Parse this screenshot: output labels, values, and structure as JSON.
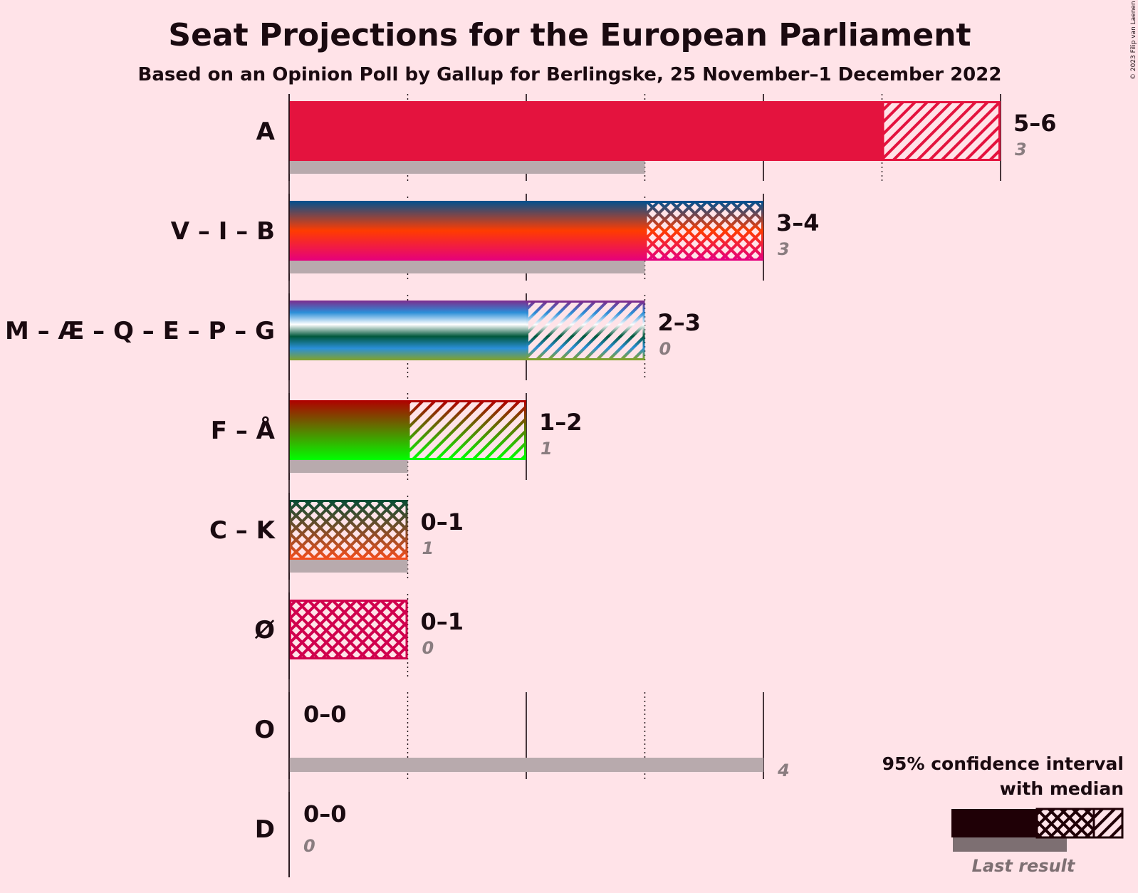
{
  "title": "Seat Projections for the European Parliament",
  "subtitle": "Based on an Opinion Poll by Gallup for Berlingske, 25 November–1 December 2022",
  "copyright": "© 2023 Filip van Laenen",
  "legend": {
    "title_line1": "95% confidence interval",
    "title_line2": "with median",
    "last_result_label": "Last result"
  },
  "chart_data": {
    "type": "bar",
    "orientation": "horizontal",
    "xlim": [
      0,
      6
    ],
    "grid": true,
    "legend_position": "bottom-right",
    "categories": [
      "A",
      "V – I – B",
      "M – Æ – Q – E – P – G",
      "F – Å",
      "C – K",
      "Ø",
      "O",
      "D"
    ],
    "parties": [
      {
        "label": "A",
        "range_text": "5–6",
        "last_text": "3",
        "low": 5,
        "high": 6,
        "last": 3,
        "colors": [
          "#E4133E"
        ]
      },
      {
        "label": "V – I – B",
        "range_text": "3–4",
        "last_text": "3",
        "low": 3,
        "high": 4,
        "last": 3,
        "colors": [
          "#01508F",
          "#FF3C00",
          "#E5007D"
        ]
      },
      {
        "label": "M – Æ – Q – E – P – G",
        "range_text": "2–3",
        "last_text": "0",
        "low": 2,
        "high": 3,
        "last": 0,
        "colors": [
          "#7D2B8D",
          "#2B8FD8",
          "#FFFFFF",
          "#00583C",
          "#2B8FD8",
          "#82A22A"
        ]
      },
      {
        "label": "F – Å",
        "range_text": "1–2",
        "last_text": "1",
        "low": 1,
        "high": 2,
        "last": 1,
        "colors": [
          "#B00000",
          "#00FF00"
        ]
      },
      {
        "label": "C – K",
        "range_text": "0–1",
        "last_text": "1",
        "low": 0,
        "high": 1,
        "last": 1,
        "colors": [
          "#0A4C33",
          "#F24E1E"
        ]
      },
      {
        "label": "Ø",
        "range_text": "0–1",
        "last_text": "0",
        "low": 0,
        "high": 1,
        "last": 0,
        "colors": [
          "#D0004D"
        ]
      },
      {
        "label": "O",
        "range_text": "0–0",
        "last_text": "4",
        "low": 0,
        "high": 0,
        "last": 4,
        "colors": [
          "#1F5A8D"
        ]
      },
      {
        "label": "D",
        "range_text": "0–0",
        "last_text": "0",
        "low": 0,
        "high": 0,
        "last": 0,
        "colors": [
          "#127B7F"
        ]
      }
    ]
  }
}
